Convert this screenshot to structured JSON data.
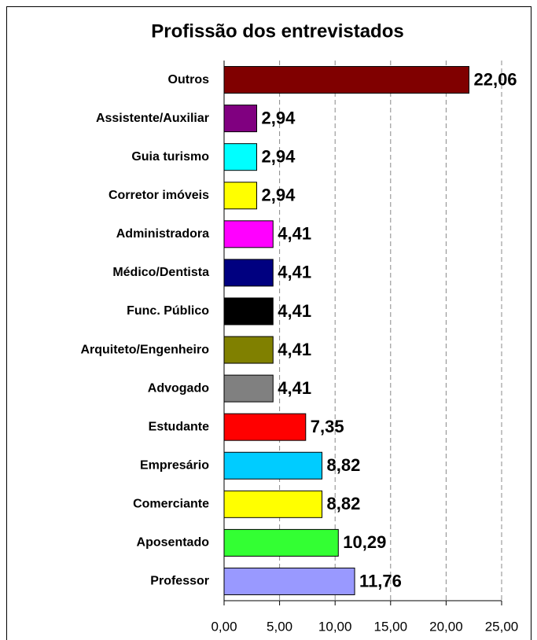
{
  "chart_data": {
    "type": "bar",
    "orientation": "horizontal",
    "title": "Profissão dos entrevistados",
    "categories": [
      "Outros",
      "Assistente/Auxiliar",
      "Guia turismo",
      "Corretor imóveis",
      "Administradora",
      "Médico/Dentista",
      "Func. Público",
      "Arquiteto/Engenheiro",
      "Advogado",
      "Estudante",
      "Empresário",
      "Comerciante",
      "Aposentado",
      "Professor"
    ],
    "values": [
      22.06,
      2.94,
      2.94,
      2.94,
      4.41,
      4.41,
      4.41,
      4.41,
      4.41,
      7.35,
      8.82,
      8.82,
      10.29,
      11.76
    ],
    "value_labels": [
      "22,06",
      "2,94",
      "2,94",
      "2,94",
      "4,41",
      "4,41",
      "4,41",
      "4,41",
      "4,41",
      "7,35",
      "8,82",
      "8,82",
      "10,29",
      "11,76"
    ],
    "colors": [
      "#800000",
      "#800080",
      "#00ffff",
      "#ffff00",
      "#ff00ff",
      "#000080",
      "#000000",
      "#808000",
      "#808080",
      "#ff0000",
      "#00ccff",
      "#ffff00",
      "#33ff33",
      "#9999ff"
    ],
    "xlim": [
      0,
      25
    ],
    "xticks": [
      {
        "value": 0,
        "label": "0,00"
      },
      {
        "value": 5,
        "label": "5,00"
      },
      {
        "value": 10,
        "label": "10,00"
      },
      {
        "value": 15,
        "label": "15,00"
      },
      {
        "value": 20,
        "label": "20,00"
      },
      {
        "value": 25,
        "label": "25,00"
      }
    ],
    "grid": true
  }
}
